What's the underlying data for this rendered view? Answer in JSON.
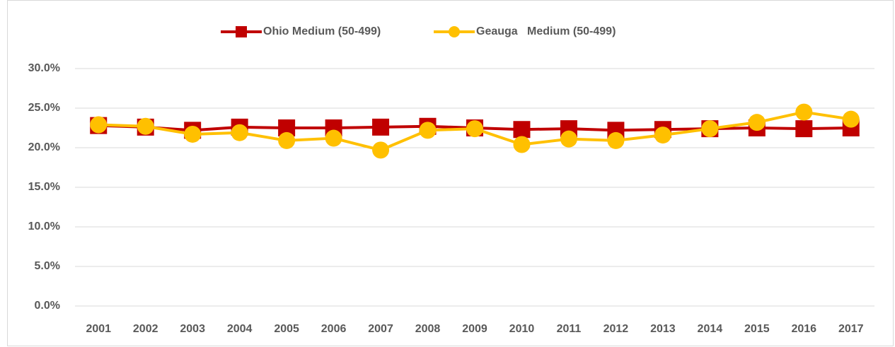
{
  "chart_data": {
    "type": "line",
    "categories": [
      "2001",
      "2002",
      "2003",
      "2004",
      "2005",
      "2006",
      "2007",
      "2008",
      "2009",
      "2010",
      "2011",
      "2012",
      "2013",
      "2014",
      "2015",
      "2016",
      "2017"
    ],
    "series": [
      {
        "name": "Ohio Medium (50-499)",
        "color": "#C00000",
        "marker": "square",
        "values": [
          22.8,
          22.6,
          22.2,
          22.6,
          22.5,
          22.5,
          22.6,
          22.7,
          22.5,
          22.3,
          22.4,
          22.2,
          22.3,
          22.4,
          22.5,
          22.4,
          22.5
        ]
      },
      {
        "name": "Geauga   Medium (50-499)",
        "color": "#FFC000",
        "marker": "circle",
        "values": [
          22.9,
          22.7,
          21.7,
          21.9,
          20.9,
          21.2,
          19.7,
          22.2,
          22.4,
          20.4,
          21.1,
          20.9,
          21.6,
          22.4,
          23.2,
          24.5,
          23.6
        ]
      }
    ],
    "ylim": [
      0,
      30
    ],
    "yticks": [
      {
        "value": 0,
        "label": "0.0%"
      },
      {
        "value": 5,
        "label": "5.0%"
      },
      {
        "value": 10,
        "label": "10.0%"
      },
      {
        "value": 15,
        "label": "15.0%"
      },
      {
        "value": 20,
        "label": "20.0%"
      },
      {
        "value": 25,
        "label": "25.0%"
      },
      {
        "value": 30,
        "label": "30.0%"
      }
    ],
    "grid": true,
    "legend": "top"
  }
}
